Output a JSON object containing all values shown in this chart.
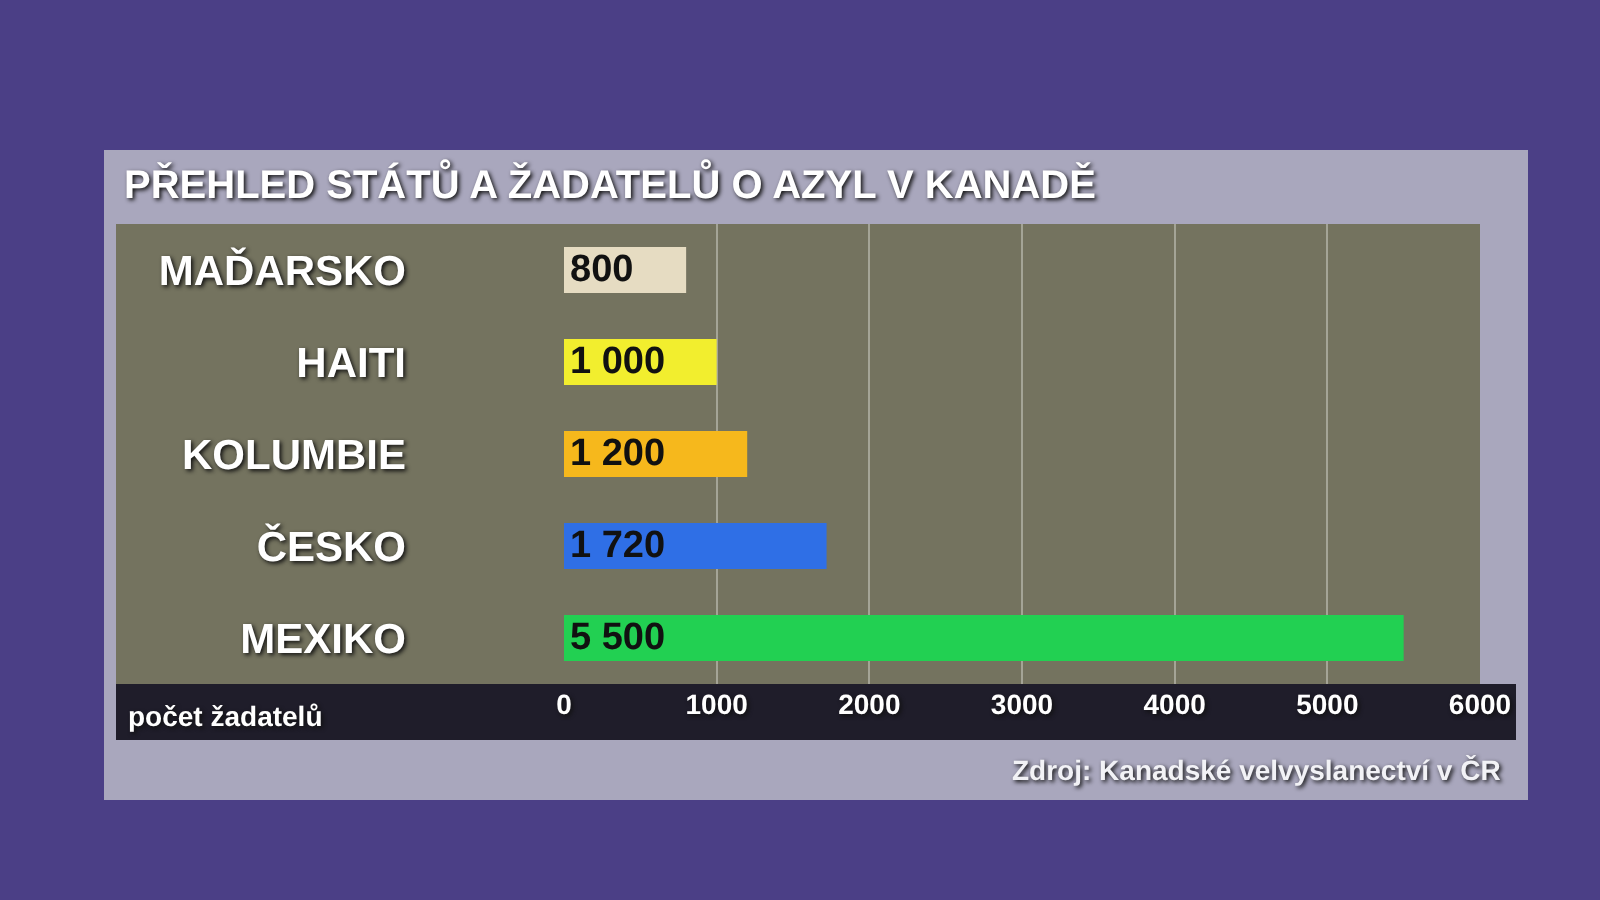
{
  "chart_data": {
    "type": "bar",
    "orientation": "horizontal",
    "title": "PŘEHLED STÁTŮ A ŽADATELŮ O AZYL V KANADĚ",
    "xlabel": "počet žadatelů",
    "categories": [
      "MAĎARSKO",
      "HAITI",
      "KOLUMBIE",
      "ČESKO",
      "MEXIKO"
    ],
    "values": [
      800,
      1000,
      1200,
      1720,
      5500
    ],
    "value_labels": [
      "800",
      "1 000",
      "1 200",
      "1 720",
      "5 500"
    ],
    "colors": [
      "#e6dcc2",
      "#f2ee2e",
      "#f6b81c",
      "#2f6fe6",
      "#22d052"
    ],
    "xlim": [
      0,
      6000
    ],
    "xticks": [
      0,
      1000,
      2000,
      3000,
      4000,
      5000,
      6000
    ],
    "grid": "x",
    "annotations": [
      "Zdroj: Kanadské velvyslanectví v ČR"
    ]
  }
}
